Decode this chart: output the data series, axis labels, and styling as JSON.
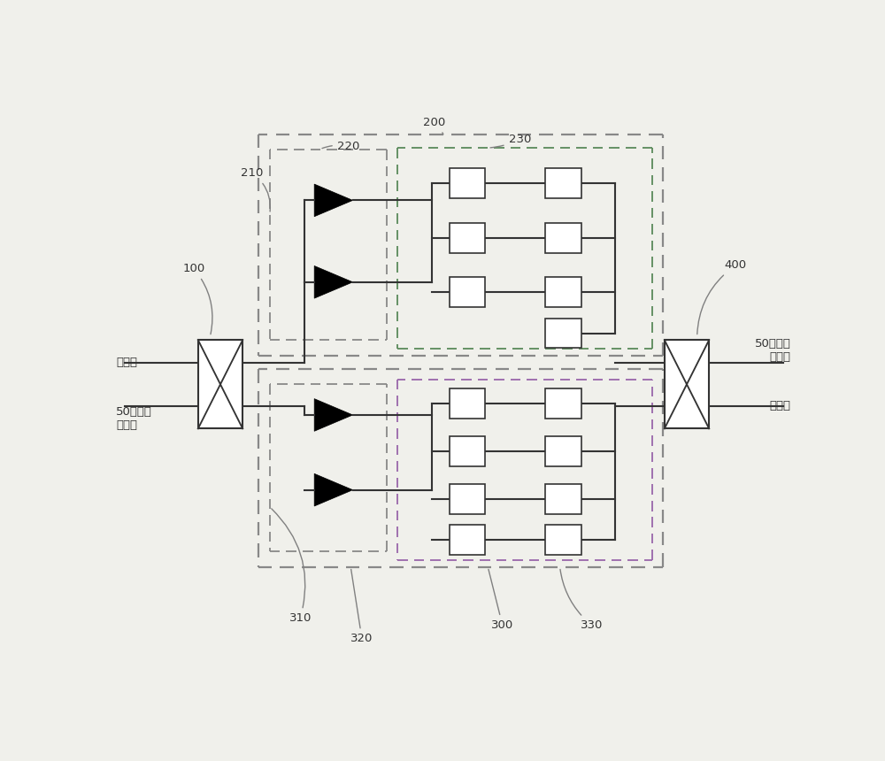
{
  "bg_color": "#f0f0eb",
  "line_color": "#333333",
  "figsize": [
    10,
    8.6
  ],
  "dpi": 100,
  "labels": {
    "input_top": "输入端",
    "input_bottom": "50欧姆匹\n配阻抗",
    "output_top": "50欧姆匹\n配阻抗",
    "output_bottom": "输出端",
    "ref_100": "100",
    "ref_200": "200",
    "ref_210": "210",
    "ref_220": "220",
    "ref_230": "230",
    "ref_300": "300",
    "ref_310": "310",
    "ref_320": "320",
    "ref_330": "330",
    "ref_400": "400"
  }
}
